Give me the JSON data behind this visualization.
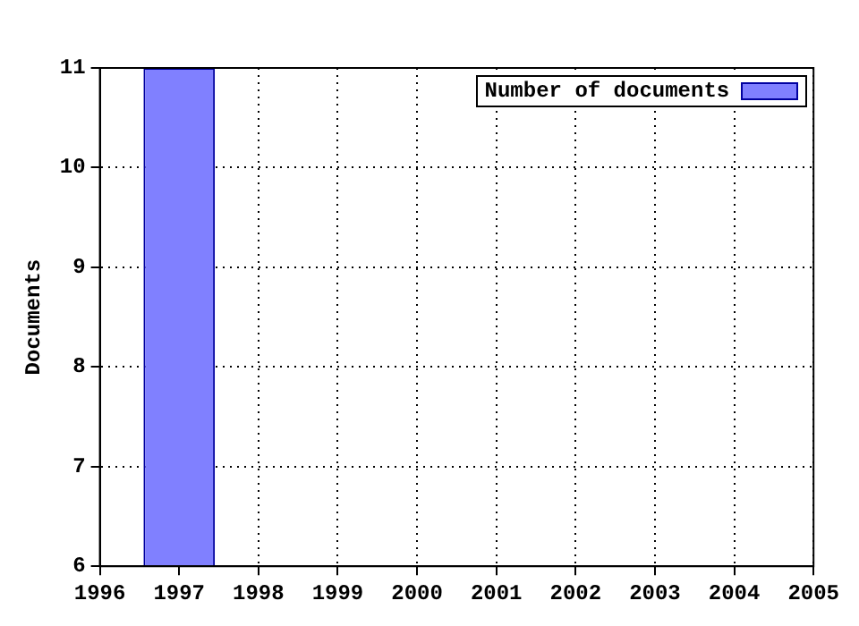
{
  "chart_data": {
    "type": "bar",
    "ylabel": "Documents",
    "x": [
      1997
    ],
    "series": [
      {
        "name": "Number of documents",
        "color": "#8080ff",
        "values": [
          11
        ]
      }
    ],
    "xlim": [
      1996,
      2005
    ],
    "xticks": [
      1996,
      1997,
      1998,
      1999,
      2000,
      2001,
      2002,
      2003,
      2004,
      2005
    ],
    "ylim": [
      6,
      11
    ],
    "yticks": [
      6,
      7,
      8,
      9,
      10,
      11
    ],
    "grid": true,
    "legend": "top right"
  }
}
